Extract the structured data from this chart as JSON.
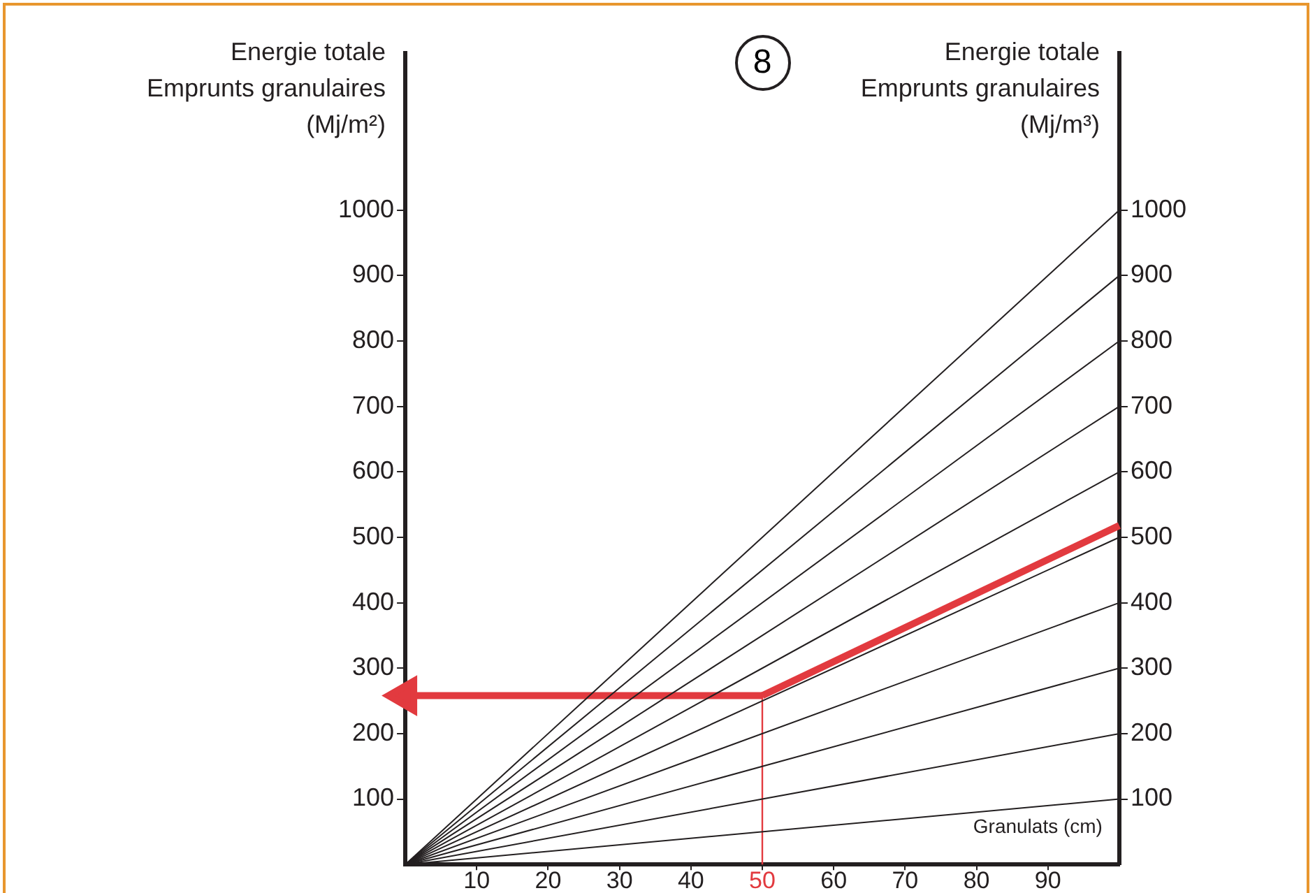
{
  "chart_data": {
    "type": "line",
    "title": "8",
    "ylabel": "Energie totale\nEmprunts granulaires\n(Mj/m²)",
    "y2label": "Energie totale\nEmprunts granulaires\n(Mj/m³)",
    "xlabel": "Granulats (cm)",
    "xlim": [
      0,
      100
    ],
    "xticks": [
      10,
      20,
      30,
      40,
      50,
      60,
      70,
      80,
      90
    ],
    "ylim": [
      0,
      1240
    ],
    "yticks": [
      100,
      200,
      300,
      400,
      500,
      600,
      700,
      800,
      900,
      1000
    ],
    "y2lim": [
      0,
      1240
    ],
    "y2ticks": [
      100,
      200,
      300,
      400,
      500,
      600,
      700,
      800,
      900,
      1000
    ],
    "grid": false,
    "legend": false,
    "line_style": "solid",
    "marker": "none",
    "series": [
      {
        "color": "#231f20",
        "x": [
          0,
          100
        ],
        "values": [
          0,
          100
        ]
      },
      {
        "color": "#231f20",
        "x": [
          0,
          100
        ],
        "values": [
          0,
          200
        ]
      },
      {
        "color": "#231f20",
        "x": [
          0,
          100
        ],
        "values": [
          0,
          300
        ]
      },
      {
        "color": "#231f20",
        "x": [
          0,
          100
        ],
        "values": [
          0,
          400
        ]
      },
      {
        "color": "#231f20",
        "x": [
          0,
          100
        ],
        "values": [
          0,
          500
        ]
      },
      {
        "color": "#231f20",
        "x": [
          0,
          100
        ],
        "values": [
          0,
          600
        ]
      },
      {
        "color": "#231f20",
        "x": [
          0,
          100
        ],
        "values": [
          0,
          700
        ]
      },
      {
        "color": "#231f20",
        "x": [
          0,
          100
        ],
        "values": [
          0,
          800
        ]
      },
      {
        "color": "#231f20",
        "x": [
          0,
          100
        ],
        "values": [
          0,
          900
        ]
      },
      {
        "color": "#231f20",
        "x": [
          0,
          100
        ],
        "values": [
          0,
          1000
        ]
      },
      {
        "color": "#e23a3f",
        "x": [
          50,
          50
        ],
        "values": [
          0,
          258
        ]
      },
      {
        "color": "#e23a3f",
        "x": [
          50,
          100
        ],
        "values": [
          258,
          518
        ]
      },
      {
        "color": "#e23a3f",
        "x": [
          0,
          50
        ],
        "values": [
          258,
          258
        ],
        "marker": "triangle"
      }
    ]
  }
}
